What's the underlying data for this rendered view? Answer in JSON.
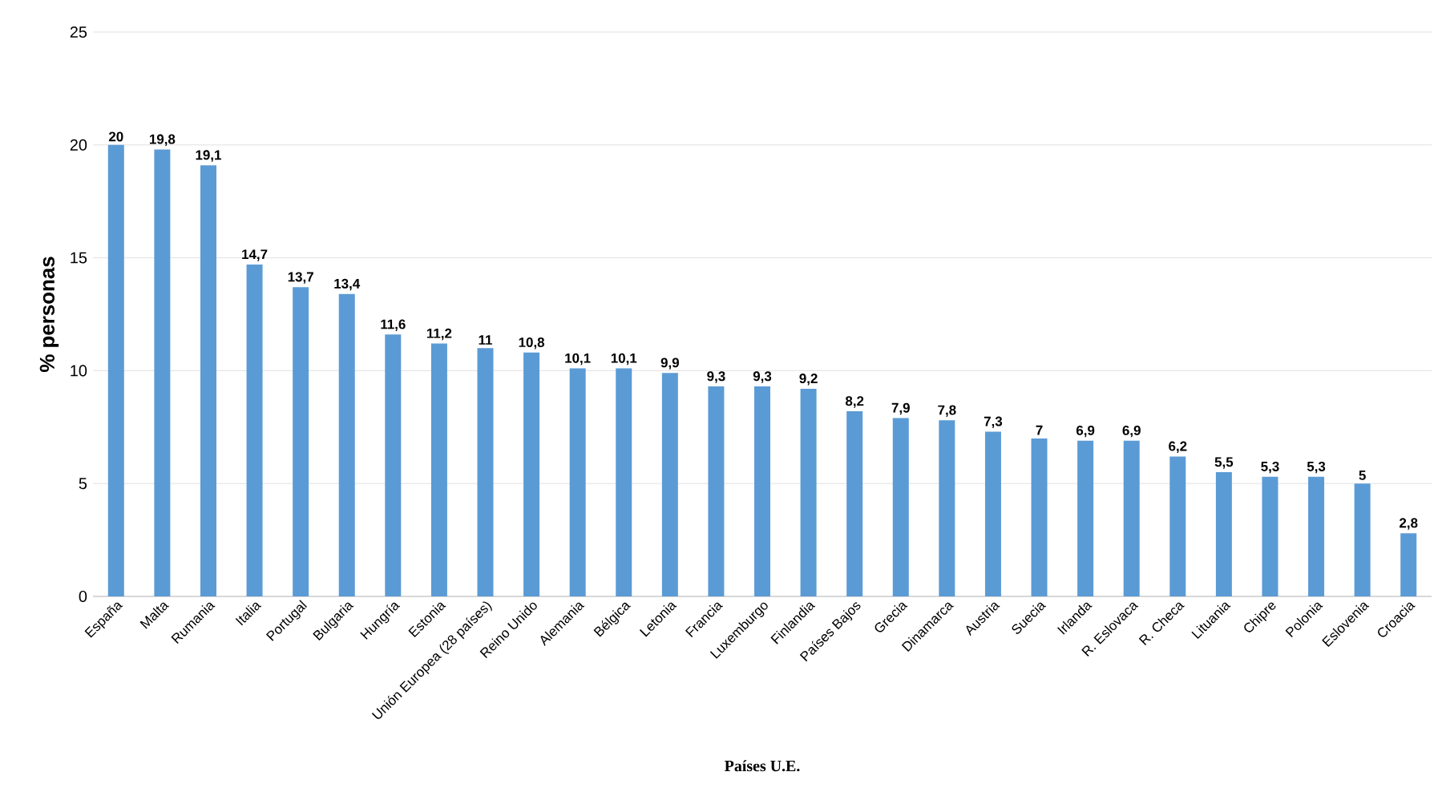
{
  "chart_data": {
    "type": "bar",
    "xlabel": "Países U.E.",
    "ylabel": "% personas",
    "categories": [
      "España",
      "Malta",
      "Rumania",
      "Italia",
      "Portugal",
      "Bulgaria",
      "Hungría",
      "Estonia",
      "Unión Europea (28 países)",
      "Reino Unido",
      "Alemania",
      "Bélgica",
      "Letonia",
      "Francia",
      "Luxemburgo",
      "Finlandia",
      "Países Bajos",
      "Grecia",
      "Dinamarca",
      "Austria",
      "Suecia",
      "Irlanda",
      "R. Eslovaca",
      "R. Checa",
      "Lituania",
      "Chipre",
      "Polonia",
      "Eslovenia",
      "Croacia"
    ],
    "values": [
      20,
      19.8,
      19.1,
      14.7,
      13.7,
      13.4,
      11.6,
      11.2,
      11,
      10.8,
      10.1,
      10.1,
      9.9,
      9.3,
      9.3,
      9.2,
      8.2,
      7.9,
      7.8,
      7.3,
      7,
      6.9,
      6.9,
      6.2,
      5.5,
      5.3,
      5.3,
      5,
      2.8
    ],
    "value_labels": [
      "20",
      "19,8",
      "19,1",
      "14,7",
      "13,7",
      "13,4",
      "11,6",
      "11,2",
      "11",
      "10,8",
      "10,1",
      "10,1",
      "9,9",
      "9,3",
      "9,3",
      "9,2",
      "8,2",
      "7,9",
      "7,8",
      "7,3",
      "7",
      "6,9",
      "6,9",
      "6,2",
      "5,5",
      "5,3",
      "5,3",
      "5",
      "2,8"
    ],
    "color": "#5b9bd5",
    "ylim": [
      0,
      25
    ],
    "yticks": [
      0,
      5,
      10,
      15,
      20,
      25
    ],
    "grid": "y"
  }
}
